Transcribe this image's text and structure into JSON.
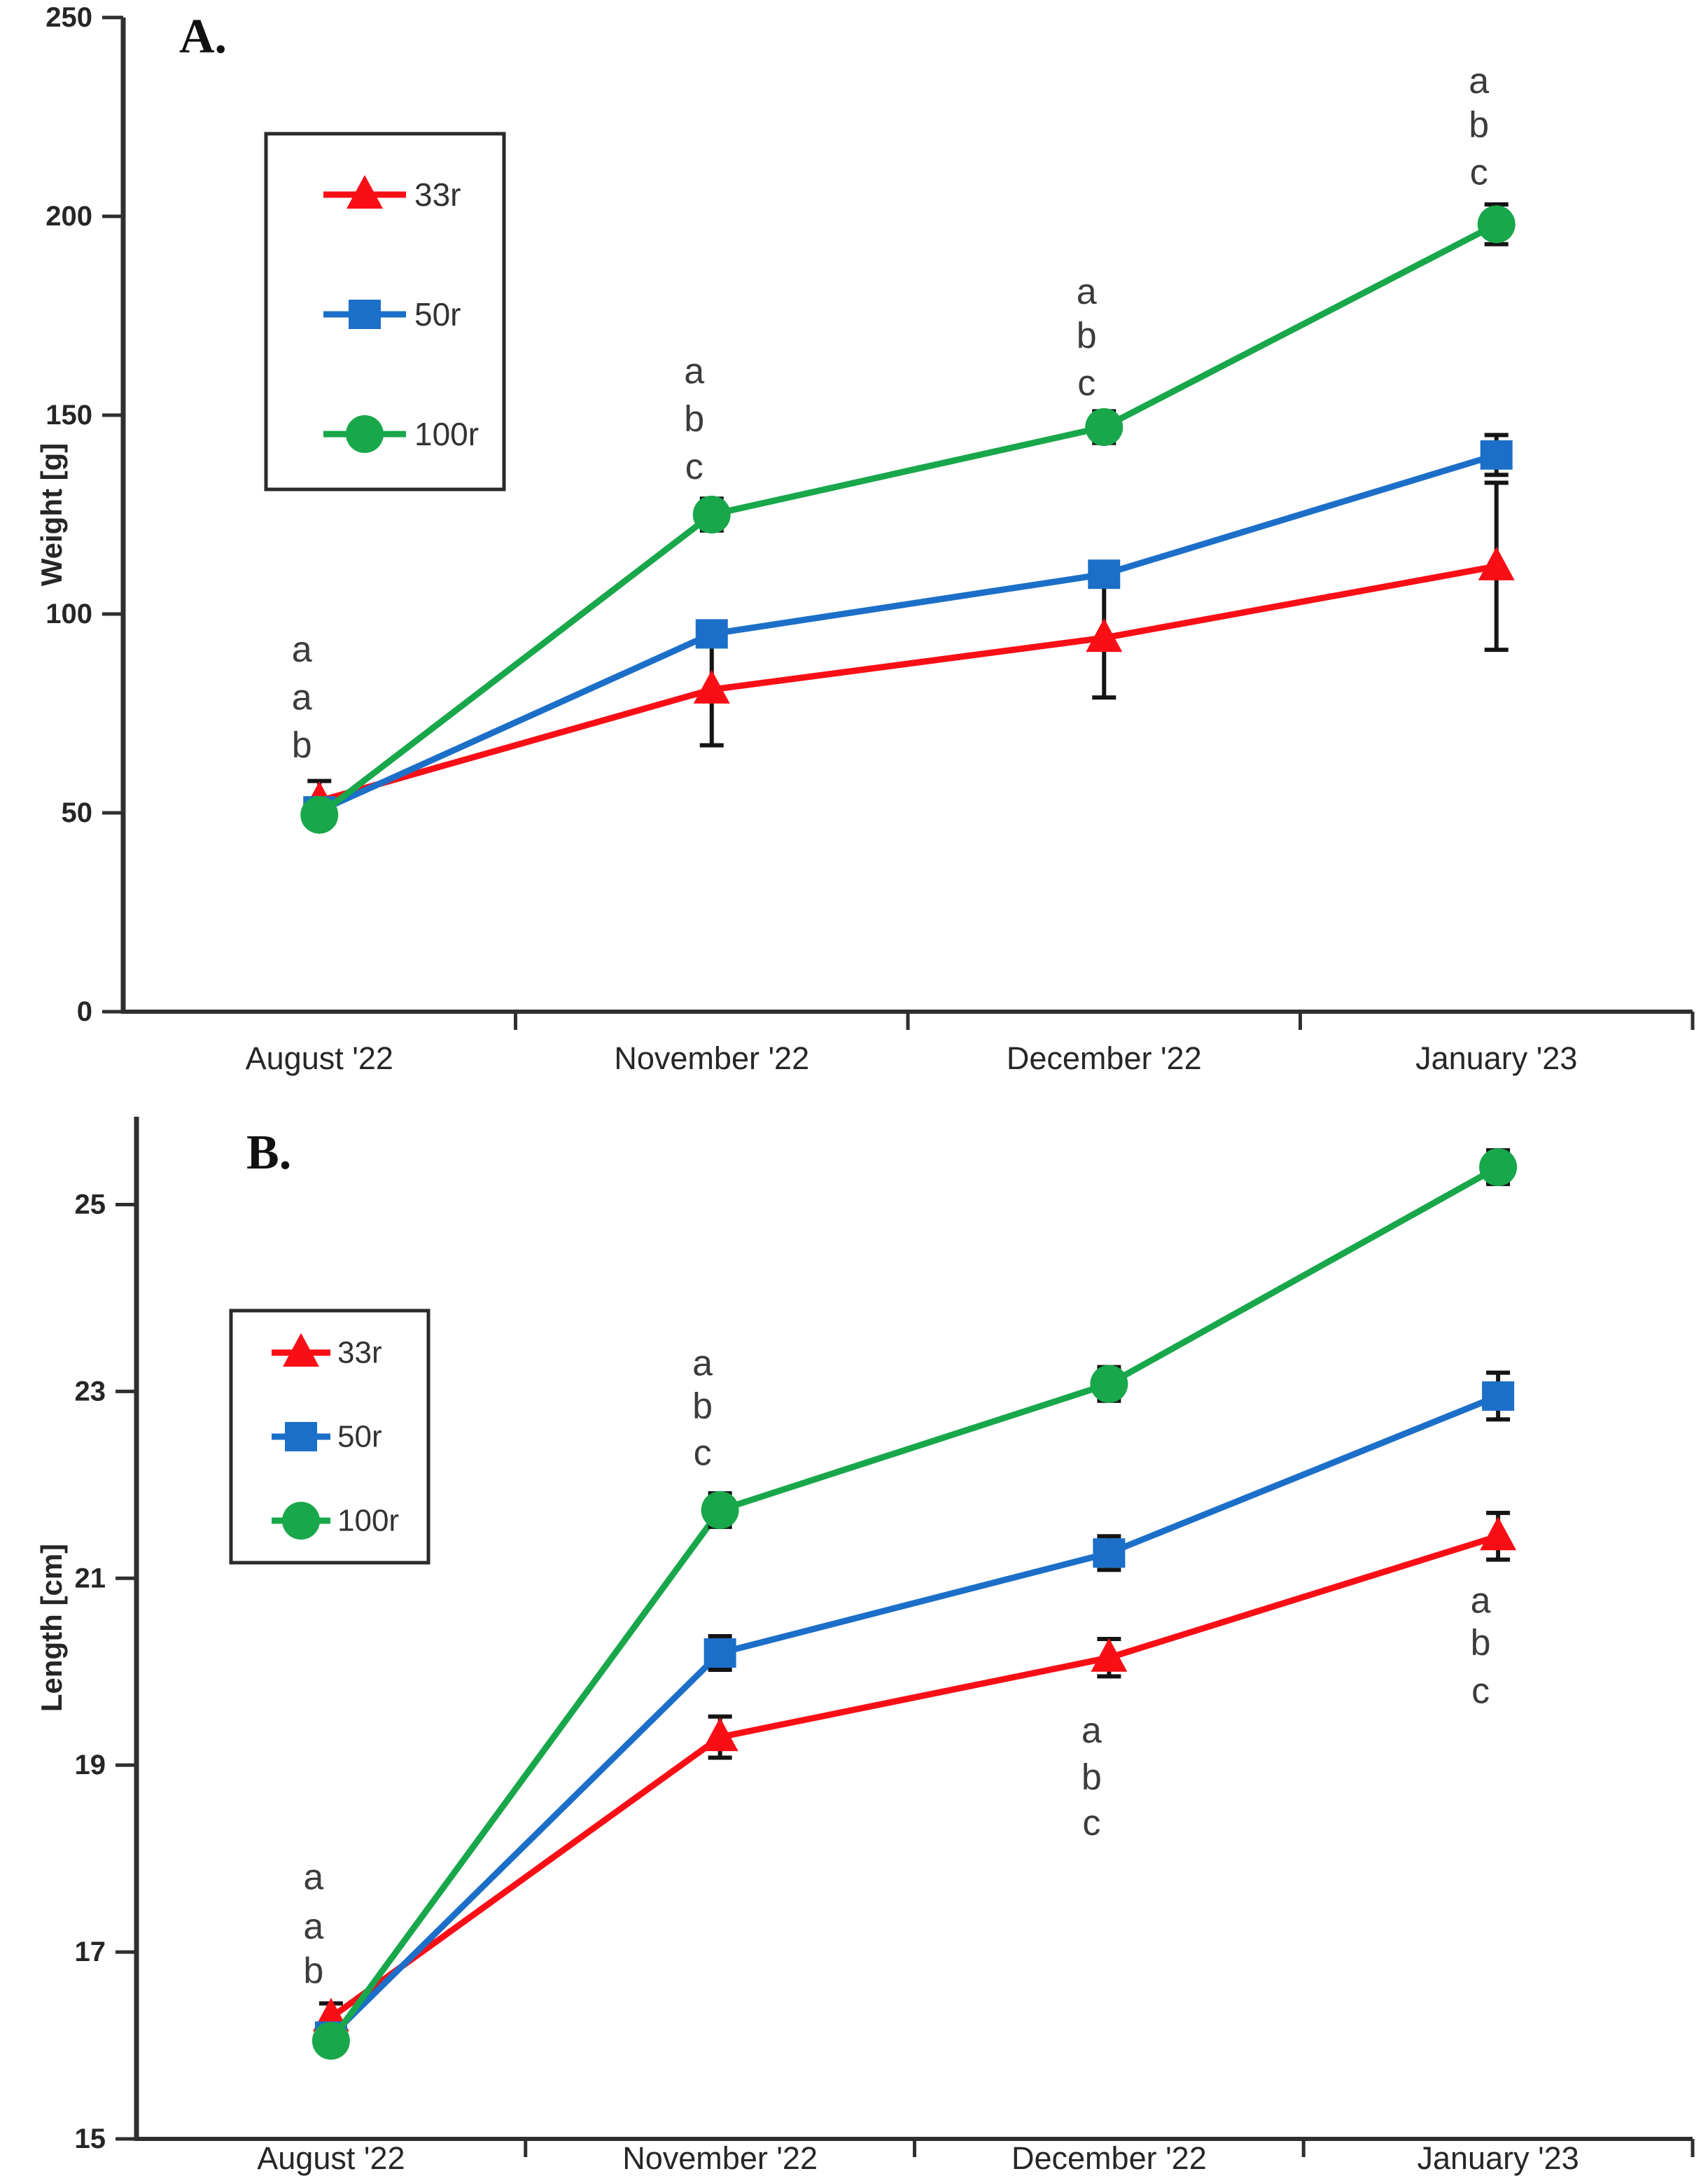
{
  "figure": {
    "background": "#ffffff",
    "axis_color": "#2f2f2f",
    "errorbar_color": "#141414",
    "text_color": "#262626",
    "letter_color": "#3c3c3c",
    "chart_data": [
      {
        "type": "line",
        "panel_label": "A.",
        "ylabel": "Weight [g]",
        "xlabel": "",
        "ylim": [
          0,
          250
        ],
        "yticks": [
          0,
          50,
          100,
          150,
          200,
          250
        ],
        "grid": false,
        "legend_position": "upper-left-box",
        "categories": [
          "August '22",
          "November '22",
          "December '22",
          "January '23"
        ],
        "series": [
          {
            "name": "33r",
            "marker": "triangle",
            "color": "#fa0e16",
            "values": [
              53,
              81,
              94,
              112
            ],
            "errors": [
              5,
              14,
              15,
              21
            ]
          },
          {
            "name": "50r",
            "marker": "square",
            "color": "#1c6fc8",
            "values": [
              50.5,
              95,
              110,
              140
            ],
            "errors": [
              2,
              3,
              3,
              5
            ]
          },
          {
            "name": "100r",
            "marker": "circle",
            "color": "#18a74a",
            "values": [
              49.5,
              125,
              147,
              198
            ],
            "errors": [
              2,
              4,
              4,
              5
            ]
          }
        ],
        "annotations": [
          {
            "category": 0,
            "letters": [
              "a",
              "a",
              "b"
            ],
            "values": [
              91,
              79,
              67
            ]
          },
          {
            "category": 1,
            "letters": [
              "a",
              "b",
              "c"
            ],
            "values": [
              161,
              149,
              137
            ]
          },
          {
            "category": 2,
            "letters": [
              "a",
              "b",
              "c"
            ],
            "values": [
              181,
              170,
              158
            ]
          },
          {
            "category": 3,
            "letters": [
              "a",
              "b",
              "c"
            ],
            "values": [
              234,
              223,
              211
            ]
          }
        ]
      },
      {
        "type": "line",
        "panel_label": "B.",
        "ylabel": "Length [cm]",
        "xlabel": "",
        "ylim": [
          15,
          25.94
        ],
        "yticks": [
          15,
          17,
          19,
          21,
          23,
          25
        ],
        "grid": false,
        "legend_position": "upper-left-box",
        "categories": [
          "August '22",
          "November '22",
          "December '22",
          "January '23"
        ],
        "series": [
          {
            "name": "33r",
            "marker": "triangle",
            "color": "#fa0e16",
            "values": [
              16.3,
              19.3,
              20.15,
              21.45
            ],
            "errors": [
              0.15,
              0.22,
              0.2,
              0.25
            ]
          },
          {
            "name": "50r",
            "marker": "square",
            "color": "#1c6fc8",
            "values": [
              16.1,
              20.2,
              21.27,
              22.95
            ],
            "errors": [
              0.1,
              0.18,
              0.18,
              0.25
            ]
          },
          {
            "name": "100r",
            "marker": "circle",
            "color": "#18a74a",
            "values": [
              16.05,
              21.73,
              23.08,
              25.4
            ],
            "errors": [
              0.1,
              0.18,
              0.18,
              0.18
            ]
          }
        ],
        "annotations": [
          {
            "category": 0,
            "letters": [
              "a",
              "a",
              "b"
            ],
            "values": [
              17.8,
              17.27,
              16.8
            ]
          },
          {
            "category": 1,
            "letters": [
              "a",
              "b",
              "c"
            ],
            "values": [
              23.3,
              22.84,
              22.34
            ]
          },
          {
            "category": 2,
            "letters": [
              "a",
              "b",
              "c"
            ],
            "values": [
              19.37,
              18.87,
              18.38
            ]
          },
          {
            "category": 3,
            "letters": [
              "a",
              "b",
              "c"
            ],
            "values": [
              20.76,
              20.31,
              19.79
            ]
          }
        ]
      }
    ]
  }
}
